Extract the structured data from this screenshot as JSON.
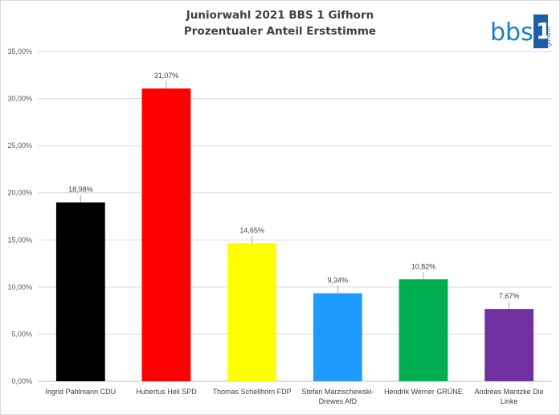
{
  "logo": {
    "text": "bbs",
    "digit": "1",
    "sub": "gifhorn"
  },
  "chart_data": {
    "type": "bar",
    "title": "Juniorwahl 2021 BBS 1 Gifhorn",
    "subtitle": "Prozentualer Anteil Erststimme",
    "categories": [
      [
        "Ingrid Pahlmann CDU"
      ],
      [
        "Hubertus Heil SPD"
      ],
      [
        "Thomas Schellhorn FDP"
      ],
      [
        "Stefan Marzischewski-",
        "Drewes AfD"
      ],
      [
        "Hendrik Werner GRÜNE"
      ],
      [
        "Andreas Mantzke Die",
        "Linke"
      ]
    ],
    "values": [
      18.98,
      31.07,
      14.65,
      9.34,
      10.82,
      7.67
    ],
    "data_labels": [
      "18,98%",
      "31,07%",
      "14,65%",
      "9,34%",
      "10,82%",
      "7,67%"
    ],
    "colors": [
      "#000000",
      "#ff0000",
      "#ffff00",
      "#1f9bff",
      "#00b050",
      "#7030a0"
    ],
    "ylim": [
      0,
      35
    ],
    "yticks": [
      0,
      5,
      10,
      15,
      20,
      25,
      30,
      35
    ],
    "ytick_labels": [
      "0,00%",
      "5,00%",
      "10,00%",
      "15,00%",
      "20,00%",
      "25,00%",
      "30,00%",
      "35,00%"
    ],
    "grid": true,
    "legend": "none"
  }
}
